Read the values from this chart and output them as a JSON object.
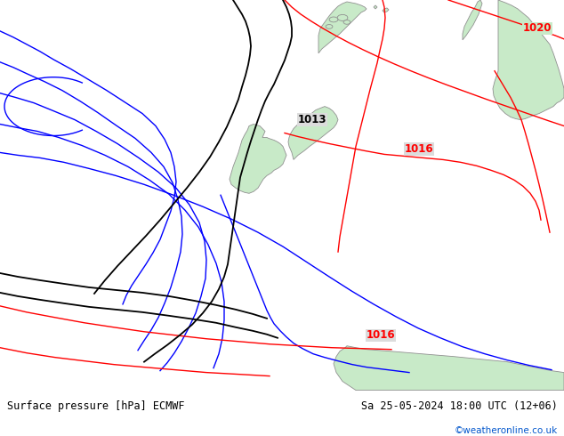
{
  "title_left": "Surface pressure [hPa] ECMWF",
  "title_right": "Sa 25-05-2024 18:00 UTC (12+06)",
  "credit": "©weatheronline.co.uk",
  "background_color": "#dcdcdc",
  "land_color": "#c8eac8",
  "land_border_color": "#909090",
  "bottom_bar_color": "#e8e8e8",
  "fig_width": 6.34,
  "fig_height": 4.9,
  "dpi": 100
}
